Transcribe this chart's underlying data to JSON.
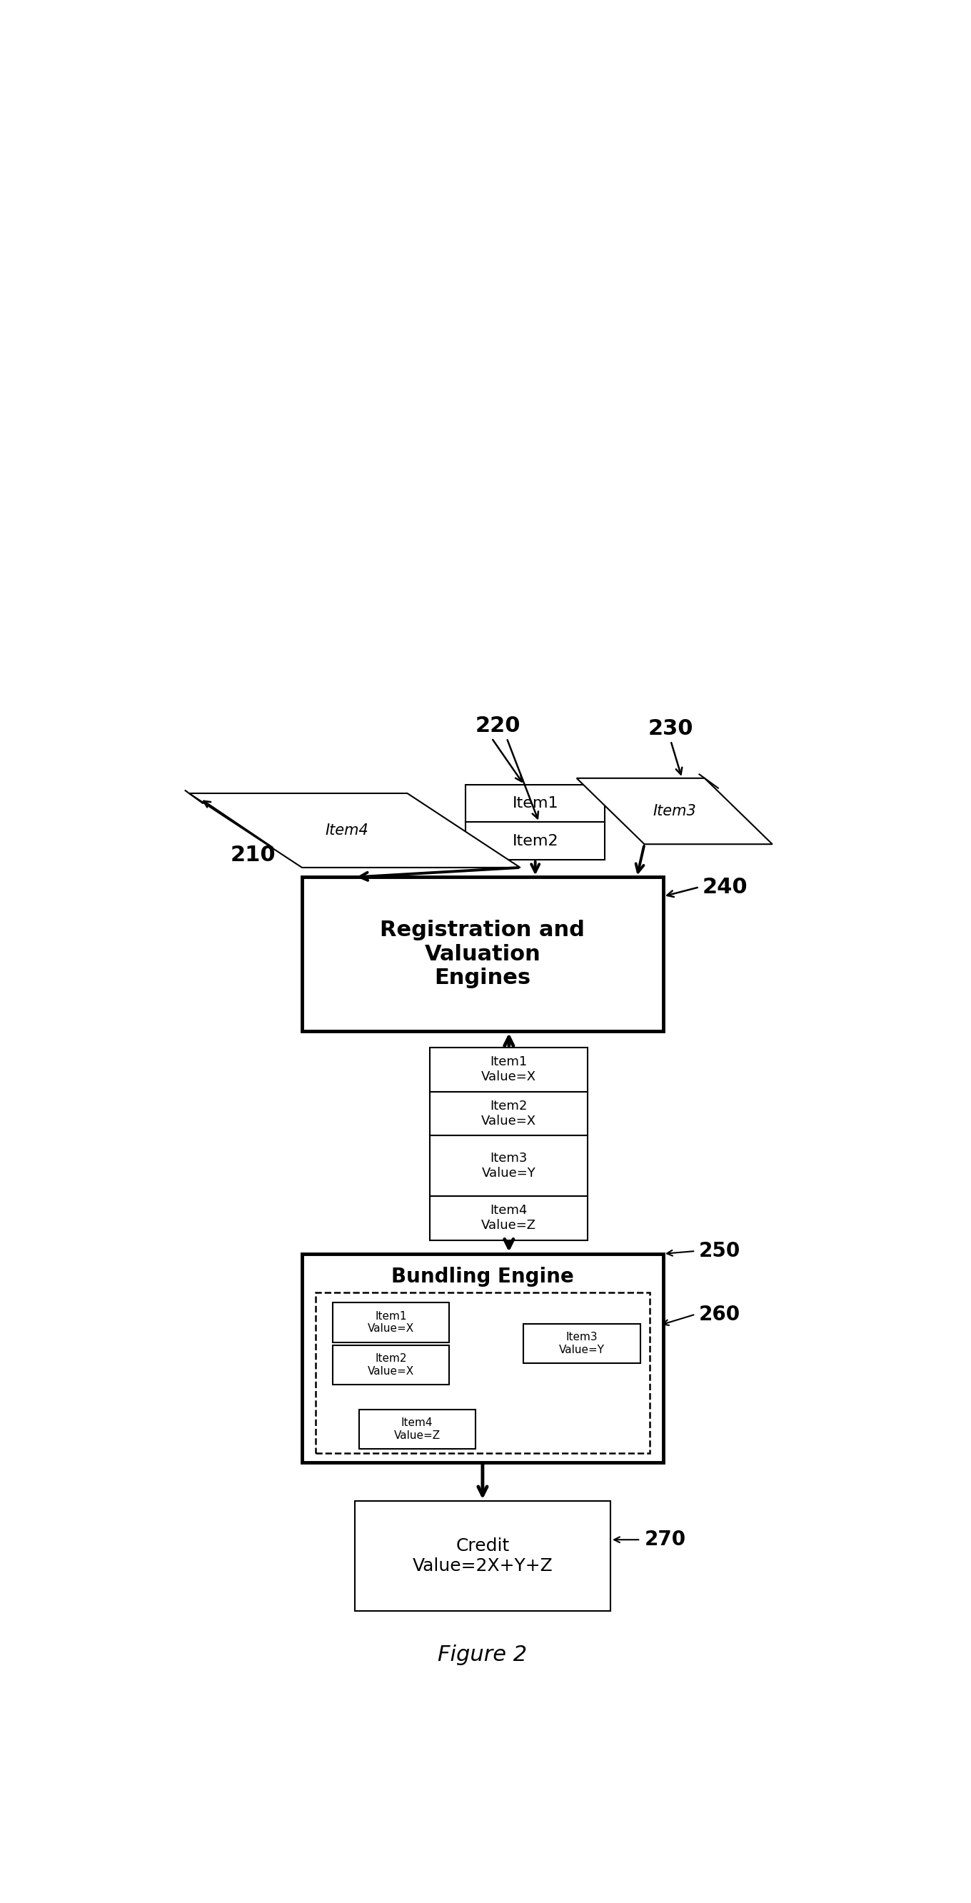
{
  "title": "Figure 2",
  "bg_color": "#ffffff",
  "fig_width": 13.6,
  "fig_height": 26.65,
  "reg_engine_text": "Registration and\nValuation\nEngines",
  "bundling_engine_text": "Bundling Engine",
  "credit_text": "Credit\nValue=2X+Y+Z",
  "valued_items": {
    "item1": "Item1\nValue=X",
    "item2": "Item2\nValue=X",
    "item3": "Item3\nValue=Y",
    "item4": "Item4\nValue=Z"
  }
}
